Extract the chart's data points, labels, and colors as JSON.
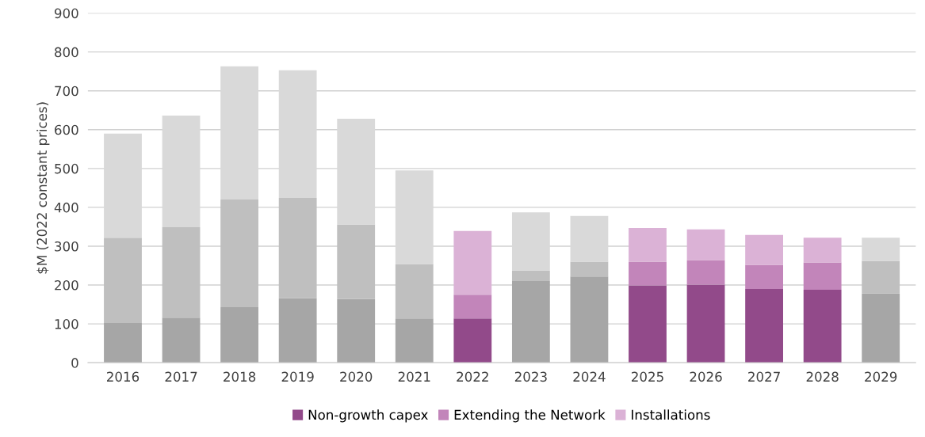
{
  "chart_data": {
    "type": "bar",
    "stacked": true,
    "ylabel": "$M (2022 constant prices)",
    "categories": [
      "2016",
      "2017",
      "2018",
      "2019",
      "2020",
      "2021",
      "2022",
      "2023",
      "2024",
      "2025",
      "2026",
      "2027",
      "2028",
      "2029"
    ],
    "series": [
      {
        "name": "Non-growth capex",
        "color": "#924a8a",
        "colors": [
          "#a6a6a6",
          "#a6a6a6",
          "#a6a6a6",
          "#a6a6a6",
          "#a6a6a6",
          "#a6a6a6",
          "#924a8a",
          "#a6a6a6",
          "#a6a6a6",
          "#924a8a",
          "#924a8a",
          "#924a8a",
          "#924a8a",
          "#a6a6a6"
        ],
        "values": [
          102,
          116,
          143,
          166,
          164,
          114,
          114,
          210,
          222,
          199,
          201,
          190,
          188,
          178
        ]
      },
      {
        "name": "Extending the Network",
        "color": "#c285ba",
        "colors": [
          "#bfbfbf",
          "#bfbfbf",
          "#bfbfbf",
          "#bfbfbf",
          "#bfbfbf",
          "#bfbfbf",
          "#c285ba",
          "#bfbfbf",
          "#bfbfbf",
          "#c285ba",
          "#c285ba",
          "#c285ba",
          "#c285ba",
          "#bfbfbf"
        ],
        "values": [
          220,
          233,
          277,
          258,
          192,
          140,
          61,
          27,
          38,
          61,
          63,
          62,
          70,
          84
        ]
      },
      {
        "name": "Installations",
        "color": "#dbb2d6",
        "colors": [
          "#d9d9d9",
          "#d9d9d9",
          "#d9d9d9",
          "#d9d9d9",
          "#d9d9d9",
          "#d9d9d9",
          "#dbb2d6",
          "#d9d9d9",
          "#d9d9d9",
          "#dbb2d6",
          "#dbb2d6",
          "#dbb2d6",
          "#dbb2d6",
          "#d9d9d9"
        ],
        "values": [
          268,
          287,
          343,
          329,
          272,
          241,
          164,
          150,
          118,
          87,
          79,
          77,
          64,
          60
        ]
      }
    ],
    "ylim": [
      0,
      900
    ],
    "yticks": [
      0,
      100,
      200,
      300,
      400,
      500,
      600,
      700,
      800,
      900
    ],
    "grid": "y",
    "legend": "bottom"
  }
}
